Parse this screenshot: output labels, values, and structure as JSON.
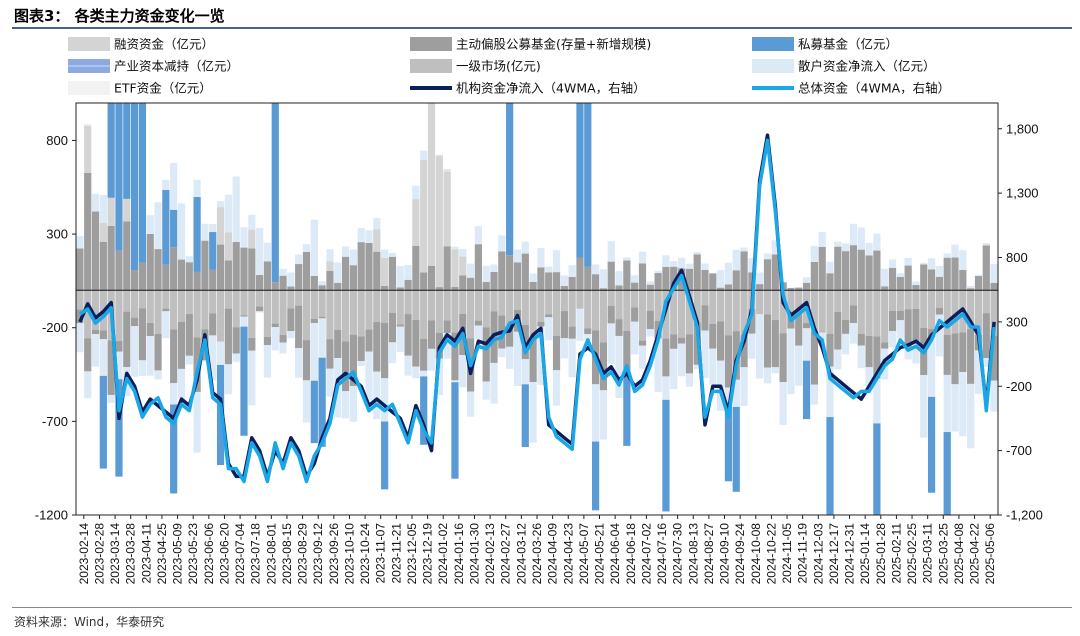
{
  "title": "图表3：  各类主力资金变化一览",
  "source": "资料来源：Wind，华泰研究",
  "chart_data": {
    "type": "bar",
    "stacked": true,
    "legend_placement": "top",
    "y_left": {
      "ticks": [
        800,
        300,
        -200,
        -700,
        -1200
      ],
      "tick_labels": [
        "800",
        "300",
        "-200",
        "-700",
        "-1200"
      ],
      "ylim": [
        -1200,
        1000
      ]
    },
    "y_right": {
      "ticks": [
        1800,
        1300,
        800,
        300,
        -200,
        -700,
        -1200
      ],
      "tick_labels": [
        "1,800",
        "1,300",
        "800",
        "300",
        "-200",
        "-700",
        "-1,200"
      ],
      "ylim": [
        -1200,
        2000
      ]
    },
    "x_tick_labels": [
      "2023-02-14",
      "2023-02-28",
      "2023-03-14",
      "2023-03-28",
      "2023-04-11",
      "2023-04-25",
      "2023-05-09",
      "2023-05-23",
      "2023-06-06",
      "2023-06-20",
      "2023-07-04",
      "2023-07-18",
      "2023-08-01",
      "2023-08-15",
      "2023-08-29",
      "2023-09-12",
      "2023-09-26",
      "2023-10-10",
      "2023-10-24",
      "2023-11-07",
      "2023-11-21",
      "2023-12-05",
      "2023-12-19",
      "2024-01-02",
      "2024-01-16",
      "2024-01-30",
      "2024-02-13",
      "2024-02-27",
      "2024-03-12",
      "2024-03-26",
      "2024-04-09",
      "2024-04-23",
      "2024-05-07",
      "2024-05-21",
      "2024-06-04",
      "2024-06-18",
      "2024-07-02",
      "2024-07-16",
      "2024-07-30",
      "2024-08-13",
      "2024-08-27",
      "2024-09-10",
      "2024-09-24",
      "2024-10-08",
      "2024-10-22",
      "2024-11-05",
      "2024-11-19",
      "2024-12-03",
      "2024-12-17",
      "2024-12-31",
      "2025-01-14",
      "2025-01-28",
      "2025-02-11",
      "2025-02-25",
      "2025-03-11",
      "2025-03-25",
      "2025-04-08",
      "2025-04-22",
      "2025-05-06"
    ],
    "legend": [
      {
        "key": "margin",
        "label": "融资资金（亿元）",
        "kind": "bar",
        "color": "#d4d4d4"
      },
      {
        "key": "active_fund",
        "label": "主动偏股公募基金(存量+新增规模)",
        "kind": "bar",
        "color": "#9e9e9e"
      },
      {
        "key": "private_fund",
        "label": "私募基金（亿元）",
        "kind": "bar",
        "color": "#5b9bd5"
      },
      {
        "key": "industrial",
        "label": "产业资本减持（亿元）",
        "kind": "bar",
        "color": "#8ea9e0"
      },
      {
        "key": "primary",
        "label": "一级市场(亿元)",
        "kind": "bar",
        "color": "#bfbfbf"
      },
      {
        "key": "retail",
        "label": "散户资金净流入（亿元）",
        "kind": "bar",
        "color": "#dce9f7"
      },
      {
        "key": "etf",
        "label": "ETF资金（亿元）",
        "kind": "bar",
        "color": "#f2f2f2"
      },
      {
        "key": "inst_4wma",
        "label": "机构资金净流入（4WMA，右轴）",
        "kind": "line",
        "color": "#0b1f5c"
      },
      {
        "key": "total_4wma",
        "label": "总体资金（4WMA，右轴）",
        "kind": "line",
        "color": "#1aa7e8"
      }
    ],
    "weeks": 118,
    "series": {
      "margin_pos": [
        0,
        250,
        0,
        100,
        150,
        0,
        120,
        0,
        0,
        0,
        0,
        0,
        0,
        0,
        0,
        0,
        0,
        0,
        200,
        150,
        0,
        0,
        100,
        0,
        0,
        0,
        0,
        0,
        0,
        0,
        0,
        0,
        50,
        0,
        0,
        0,
        0,
        0,
        120,
        150,
        0,
        0,
        0,
        250,
        600,
        900,
        700,
        400,
        200,
        100,
        0,
        0,
        0,
        0,
        0,
        0,
        0,
        0,
        0,
        0,
        0,
        0,
        0,
        0,
        0,
        0,
        0,
        0,
        0,
        0,
        0,
        0,
        0,
        0,
        0,
        0,
        0,
        0,
        0,
        0,
        0,
        0,
        0,
        0,
        0,
        0,
        0,
        0,
        0,
        0,
        0,
        0,
        0,
        0,
        0,
        0,
        0,
        0,
        0,
        0,
        0,
        0,
        0,
        0,
        0,
        0,
        0,
        0,
        0,
        0,
        0,
        0,
        0,
        0,
        0,
        0,
        0,
        0
      ],
      "active_fund_pos": [
        100,
        500,
        350,
        200,
        300,
        100,
        200,
        50,
        60,
        80,
        120,
        80,
        60,
        40,
        40,
        30,
        50,
        30,
        60,
        50,
        40,
        30,
        50,
        40,
        20,
        30,
        20,
        20,
        20,
        20,
        10,
        10,
        10,
        10,
        10,
        10,
        10,
        10,
        10,
        10,
        10,
        10,
        10,
        10,
        10,
        10,
        10,
        10,
        10,
        10,
        10,
        10,
        10,
        10,
        10,
        10,
        10,
        10,
        10,
        10,
        10,
        10,
        10,
        10,
        10,
        10,
        10,
        10,
        10,
        10,
        10,
        10,
        10,
        10,
        10,
        10,
        10,
        10,
        10,
        10,
        10,
        10,
        10,
        10,
        10,
        10,
        10,
        10,
        10,
        10,
        10,
        10,
        10,
        10,
        10,
        10,
        10,
        10,
        10,
        10,
        10,
        10,
        10,
        10,
        10,
        10,
        10,
        10,
        10,
        10,
        10,
        10,
        10,
        10,
        10,
        10,
        10,
        10
      ],
      "private_fund_pos": [
        0,
        0,
        0,
        0,
        1000,
        900,
        1000,
        1000,
        900,
        0,
        0,
        400,
        200,
        0,
        0,
        400,
        0,
        200,
        0,
        0,
        0,
        0,
        0,
        0,
        0,
        1000,
        0,
        0,
        0,
        0,
        0,
        0,
        0,
        0,
        0,
        0,
        0,
        0,
        0,
        0,
        0,
        0,
        0,
        0,
        0,
        0,
        0,
        0,
        0,
        0,
        0,
        0,
        0,
        0,
        0,
        1000,
        0,
        0,
        0,
        0,
        0,
        0,
        0,
        0,
        1000,
        1000,
        0,
        0,
        0,
        0,
        0,
        0,
        0,
        0,
        0,
        0,
        0,
        0,
        0,
        0,
        0,
        0,
        0,
        0,
        0,
        0,
        0,
        0,
        0,
        0,
        0,
        0,
        0,
        0,
        0,
        0,
        0,
        0,
        0,
        0,
        0,
        0,
        0,
        0,
        0,
        0,
        0,
        0,
        0,
        0,
        0,
        0,
        0,
        0,
        0,
        0,
        0,
        0
      ],
      "retail_pos": [
        0,
        0,
        0,
        150,
        0,
        100,
        0,
        0,
        0,
        100,
        250,
        0,
        250,
        300,
        0,
        0,
        0,
        0,
        0,
        200,
        350,
        0,
        0,
        250,
        0,
        0,
        0,
        0,
        0,
        0,
        300,
        0,
        0,
        0,
        0,
        0,
        0,
        0,
        0,
        0,
        0,
        0,
        0,
        0,
        0,
        0,
        0,
        0,
        0,
        0,
        0,
        0,
        0,
        0,
        0,
        0,
        0,
        0,
        0,
        0,
        0,
        0,
        0,
        0,
        0,
        0,
        0,
        0,
        0,
        0,
        0,
        0,
        0,
        0,
        0,
        0,
        0,
        0,
        0,
        0,
        0,
        0,
        0,
        0,
        0,
        0,
        0,
        0,
        0,
        0,
        0,
        0,
        0,
        0,
        0,
        0,
        0,
        0,
        0,
        0,
        0,
        0,
        0,
        0,
        0,
        0,
        0,
        0,
        0,
        0,
        0,
        0,
        0,
        0,
        0,
        0,
        0,
        0
      ]
    }
  }
}
